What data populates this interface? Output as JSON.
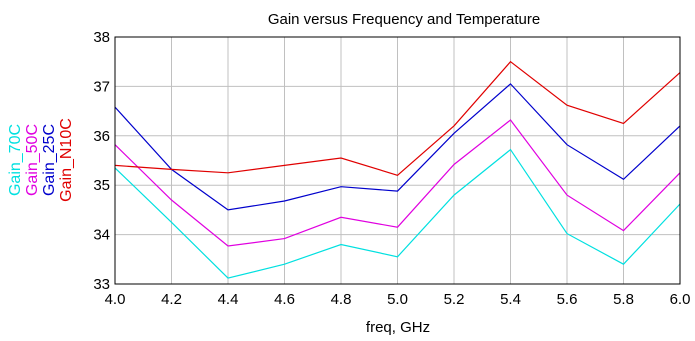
{
  "chart_data": {
    "type": "line",
    "title": "Gain versus Frequency and Temperature",
    "xlabel": "freq, GHz",
    "ylabel": "",
    "xlim": [
      4.0,
      6.0
    ],
    "ylim": [
      33,
      38
    ],
    "grid": true,
    "x": [
      4.0,
      4.2,
      4.4,
      4.6,
      4.8,
      5.0,
      5.2,
      5.4,
      5.6,
      5.8,
      6.0
    ],
    "x_tick_labels": [
      "4.0",
      "4.2",
      "4.4",
      "4.6",
      "4.8",
      "5.0",
      "5.2",
      "5.4",
      "5.6",
      "5.8",
      "6.0"
    ],
    "y_ticks": [
      33,
      34,
      35,
      36,
      37,
      38
    ],
    "y_tick_labels": [
      "33",
      "34",
      "35",
      "36",
      "37",
      "38"
    ],
    "series": [
      {
        "name": "Gain_70C",
        "color": "#00e0e0",
        "values": [
          35.35,
          34.25,
          33.12,
          33.4,
          33.8,
          33.55,
          34.8,
          35.72,
          34.02,
          33.4,
          34.62
        ]
      },
      {
        "name": "Gain_50C",
        "color": "#e000e0",
        "values": [
          35.82,
          34.7,
          33.77,
          33.92,
          34.35,
          34.15,
          35.42,
          36.32,
          34.8,
          34.08,
          35.25
        ]
      },
      {
        "name": "Gain_25C",
        "color": "#0000cc",
        "values": [
          36.58,
          35.32,
          34.5,
          34.68,
          34.97,
          34.88,
          36.05,
          37.05,
          35.82,
          35.12,
          36.2
        ]
      },
      {
        "name": "Gain_N10C",
        "color": "#e00000",
        "values": [
          35.4,
          35.32,
          35.25,
          35.4,
          35.55,
          35.2,
          36.2,
          37.5,
          36.62,
          36.25,
          37.28
        ]
      }
    ]
  }
}
